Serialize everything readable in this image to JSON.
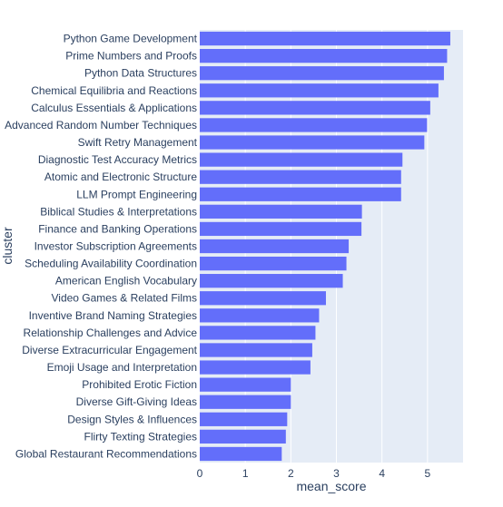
{
  "chart_data": {
    "type": "bar",
    "orientation": "horizontal",
    "xlabel": "mean_score",
    "ylabel": "cluster",
    "xlim": [
      0,
      5.78
    ],
    "xticks": [
      0,
      1,
      2,
      3,
      4,
      5
    ],
    "grid": true,
    "colors": {
      "bar": "#636EFA",
      "plot_background": "#E5ECF6",
      "grid": "#ffffff",
      "text": "#2a3f5f"
    },
    "categories": [
      "Python Game Development",
      "Prime Numbers and Proofs",
      "Python Data Structures",
      "Chemical Equilibria and Reactions",
      "Calculus Essentials & Applications",
      "Advanced Random Number Techniques",
      "Swift Retry Management",
      "Diagnostic Test Accuracy Metrics",
      "Atomic and Electronic Structure",
      "LLM Prompt Engineering",
      "Biblical Studies & Interpretations",
      "Finance and Banking Operations",
      "Investor Subscription Agreements",
      "Scheduling Availability Coordination",
      "American English Vocabulary",
      "Video Games & Related Films",
      "Inventive Brand Naming Strategies",
      "Relationship Challenges and Advice",
      "Diverse Extracurricular Engagement",
      "Emoji Usage and Interpretation",
      "Prohibited Erotic Fiction",
      "Diverse Gift-Giving Ideas",
      "Design Styles & Influences",
      "Flirty Texting Strategies",
      "Global Restaurant Recommendations"
    ],
    "values": [
      5.5,
      5.43,
      5.36,
      5.24,
      5.06,
      4.99,
      4.93,
      4.45,
      4.42,
      4.42,
      3.56,
      3.55,
      3.27,
      3.22,
      3.14,
      2.77,
      2.62,
      2.54,
      2.47,
      2.43,
      2.0,
      2.0,
      1.92,
      1.89,
      1.8
    ]
  }
}
